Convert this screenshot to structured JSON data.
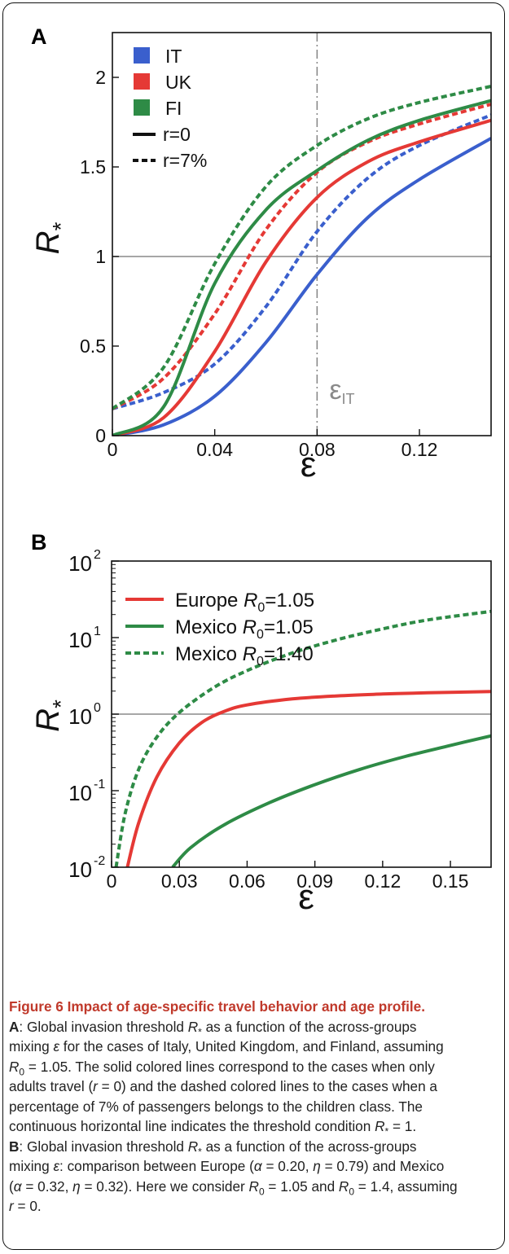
{
  "figure": {
    "panel_a_label": "A",
    "panel_b_label": "B"
  },
  "chart_data": [
    {
      "type": "line",
      "panel": "A",
      "ylabel": "R*",
      "xlabel": "ε",
      "xlim": [
        0,
        0.148
      ],
      "ylim": [
        0,
        2.25
      ],
      "x_ticks": [
        "0",
        "0.04",
        "0.08",
        "0.12"
      ],
      "x_tick_values": [
        0,
        0.04,
        0.08,
        0.12
      ],
      "y_ticks": [
        "0",
        "0.5",
        "1",
        "1.5",
        "2"
      ],
      "y_tick_values": [
        0,
        0.5,
        1,
        1.5,
        2
      ],
      "threshold_line": 1,
      "vertical_line": {
        "x": 0.08,
        "label": "ε",
        "label_sub": "IT"
      },
      "legend": {
        "placement": "top-left",
        "countries": [
          {
            "name": "IT",
            "color": "#3a5fcd"
          },
          {
            "name": "UK",
            "color": "#e53935"
          },
          {
            "name": "FI",
            "color": "#2e8b46"
          }
        ],
        "styles": [
          {
            "name": "r=0",
            "dash": "solid"
          },
          {
            "name": "r=7%",
            "dash": "dashed"
          }
        ]
      },
      "series": [
        {
          "country": "IT",
          "style": "r=0",
          "color": "#3a5fcd",
          "dashed": false,
          "x": [
            0,
            0.02,
            0.04,
            0.06,
            0.08,
            0.1,
            0.12,
            0.148
          ],
          "y": [
            0,
            0.06,
            0.22,
            0.52,
            0.9,
            1.22,
            1.43,
            1.66
          ]
        },
        {
          "country": "UK",
          "style": "r=0",
          "color": "#e53935",
          "dashed": false,
          "x": [
            0,
            0.02,
            0.04,
            0.06,
            0.08,
            0.1,
            0.12,
            0.148
          ],
          "y": [
            0,
            0.1,
            0.47,
            0.97,
            1.33,
            1.53,
            1.64,
            1.76
          ]
        },
        {
          "country": "FI",
          "style": "r=0",
          "color": "#2e8b46",
          "dashed": false,
          "x": [
            0,
            0.02,
            0.04,
            0.06,
            0.08,
            0.1,
            0.12,
            0.148
          ],
          "y": [
            0,
            0.16,
            0.85,
            1.26,
            1.48,
            1.65,
            1.76,
            1.87
          ]
        },
        {
          "country": "IT",
          "style": "r=7%",
          "color": "#3a5fcd",
          "dashed": true,
          "x": [
            0,
            0.02,
            0.04,
            0.06,
            0.08,
            0.1,
            0.12,
            0.148
          ],
          "y": [
            0.15,
            0.24,
            0.4,
            0.72,
            1.14,
            1.44,
            1.62,
            1.79
          ]
        },
        {
          "country": "UK",
          "style": "r=7%",
          "color": "#e53935",
          "dashed": true,
          "x": [
            0,
            0.02,
            0.04,
            0.06,
            0.08,
            0.1,
            0.12,
            0.148
          ],
          "y": [
            0.15,
            0.32,
            0.68,
            1.15,
            1.47,
            1.64,
            1.74,
            1.85
          ]
        },
        {
          "country": "FI",
          "style": "r=7%",
          "color": "#2e8b46",
          "dashed": true,
          "x": [
            0,
            0.02,
            0.04,
            0.06,
            0.08,
            0.1,
            0.12,
            0.148
          ],
          "y": [
            0.15,
            0.38,
            0.96,
            1.39,
            1.62,
            1.77,
            1.86,
            1.95
          ]
        }
      ]
    },
    {
      "type": "line",
      "panel": "B",
      "ylabel": "R*",
      "xlabel": "ε",
      "yscale": "log",
      "xlim": [
        0,
        0.168
      ],
      "ylim": [
        0.01,
        100
      ],
      "x_ticks": [
        "0",
        "0.03",
        "0.06",
        "0.09",
        "0.12",
        "0.15"
      ],
      "x_tick_values": [
        0,
        0.03,
        0.06,
        0.09,
        0.12,
        0.15
      ],
      "y_ticks": [
        {
          "base": "10",
          "exp": "-2",
          "value": 0.01
        },
        {
          "base": "10",
          "exp": "-1",
          "value": 0.1
        },
        {
          "base": "10",
          "exp": "0",
          "value": 1
        },
        {
          "base": "10",
          "exp": "1",
          "value": 10
        },
        {
          "base": "10",
          "exp": "2",
          "value": 100
        }
      ],
      "threshold_line": 1,
      "legend": {
        "placement": "top-left"
      },
      "series": [
        {
          "name": "Europe",
          "r0_label": "R",
          "r0_sub": "0",
          "r0_value": "=1.05",
          "color": "#e53935",
          "dashed": false,
          "x": [
            0.007,
            0.012,
            0.02,
            0.03,
            0.04,
            0.05,
            0.06,
            0.08,
            0.1,
            0.12,
            0.14,
            0.168
          ],
          "y": [
            0.01,
            0.038,
            0.15,
            0.42,
            0.78,
            1.09,
            1.32,
            1.58,
            1.73,
            1.83,
            1.9,
            1.97
          ]
        },
        {
          "name": "Mexico",
          "r0_label": "R",
          "r0_sub": "0",
          "r0_value": "=1.05",
          "color": "#2e8b46",
          "dashed": false,
          "x": [
            0.027,
            0.035,
            0.05,
            0.07,
            0.09,
            0.11,
            0.13,
            0.15,
            0.168
          ],
          "y": [
            0.01,
            0.018,
            0.036,
            0.07,
            0.12,
            0.19,
            0.28,
            0.39,
            0.52
          ]
        },
        {
          "name": "Mexico",
          "r0_label": "R",
          "r0_sub": "0",
          "r0_value": "=1.40",
          "color": "#2e8b46",
          "dashed": true,
          "x": [
            0.002,
            0.006,
            0.012,
            0.02,
            0.03,
            0.045,
            0.06,
            0.08,
            0.1,
            0.12,
            0.14,
            0.168
          ],
          "y": [
            0.01,
            0.05,
            0.19,
            0.5,
            1.05,
            2.2,
            3.7,
            6.3,
            9.4,
            13.0,
            17.0,
            22.0
          ]
        }
      ]
    }
  ],
  "caption": {
    "title": "Figure 6 Impact of age-specific travel behavior and age profile.",
    "lines": [
      [
        {
          "t": "A",
          "b": 1
        },
        {
          "t": ": Global invasion threshold "
        },
        {
          "t": "R",
          "i": 1
        },
        {
          "t": "*",
          "sub": 1
        },
        {
          "t": "  as a function of the across-groups"
        }
      ],
      [
        {
          "t": "mixing "
        },
        {
          "t": "ε",
          "i": 1
        },
        {
          "t": " for the cases of Italy, United Kingdom, and Finland, assuming"
        }
      ],
      [
        {
          "t": "R",
          "i": 1
        },
        {
          "t": "0",
          "sub": 1
        },
        {
          "t": " = 1.05. The solid colored lines correspond to the cases when only"
        }
      ],
      [
        {
          "t": "adults travel ("
        },
        {
          "t": "r",
          "i": 1
        },
        {
          "t": " = 0) and the dashed colored lines to the cases when a"
        }
      ],
      [
        {
          "t": "percentage of 7% of passengers belongs to the children class. The"
        }
      ],
      [
        {
          "t": "continuous horizontal line indicates the threshold condition "
        },
        {
          "t": "R",
          "i": 1
        },
        {
          "t": "*",
          "sub": 1
        },
        {
          "t": " = 1."
        }
      ],
      [
        {
          "t": "B",
          "b": 1
        },
        {
          "t": ": Global invasion threshold "
        },
        {
          "t": "R",
          "i": 1
        },
        {
          "t": "*",
          "sub": 1
        },
        {
          "t": "  as a function of the across-groups"
        }
      ],
      [
        {
          "t": "mixing "
        },
        {
          "t": "ε",
          "i": 1
        },
        {
          "t": ": comparison between Europe ("
        },
        {
          "t": "α",
          "i": 1
        },
        {
          "t": " = 0.20, "
        },
        {
          "t": "η",
          "i": 1
        },
        {
          "t": " = 0.79) and Mexico"
        }
      ],
      [
        {
          "t": "("
        },
        {
          "t": "α",
          "i": 1
        },
        {
          "t": " = 0.32, "
        },
        {
          "t": "η",
          "i": 1
        },
        {
          "t": " = 0.32). Here we consider "
        },
        {
          "t": "R",
          "i": 1
        },
        {
          "t": "0",
          "sub": 1
        },
        {
          "t": " = 1.05 and "
        },
        {
          "t": "R",
          "i": 1
        },
        {
          "t": "0",
          "sub": 1
        },
        {
          "t": " = 1.4, assuming"
        }
      ],
      [
        {
          "t": "r",
          "i": 1
        },
        {
          "t": " = 0."
        }
      ]
    ]
  }
}
